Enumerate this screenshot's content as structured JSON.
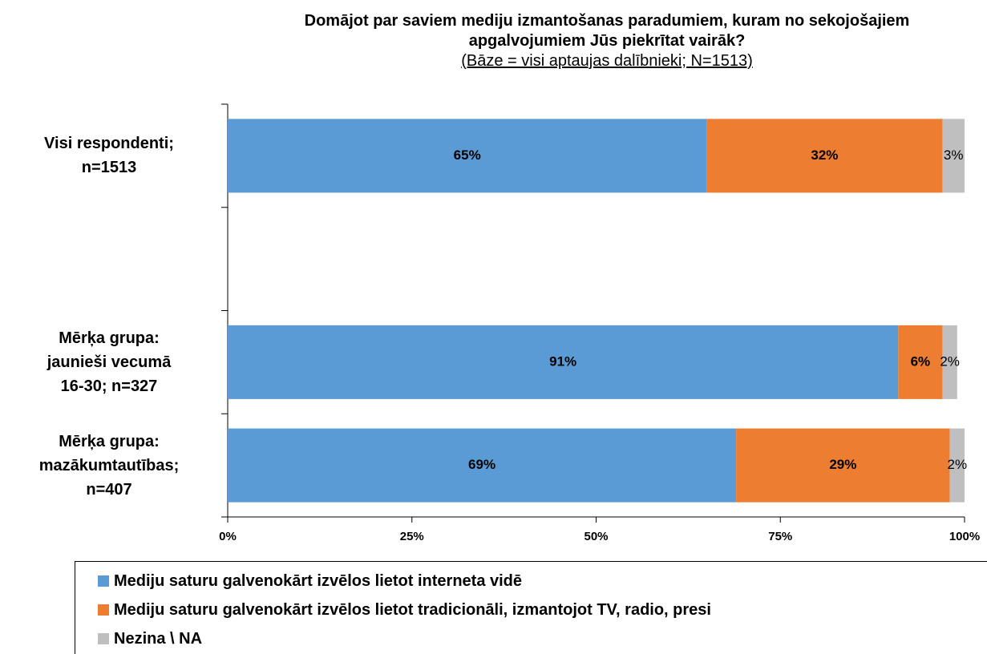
{
  "chart_data": {
    "type": "stacked-bar-horizontal",
    "title": "Domājot par saviem mediju izmantošanas paradumiem, kuram no sekojošajiem apgalvojumiem Jūs piekrītat vairāk?",
    "subtitle": "(Bāze = visi aptaujas dalībnieki; N=1513)",
    "categories": [
      "Visi respondenti;\nn=1513",
      null,
      "Mērķa grupa:\njaunieši vecumā\n16-30; n=327",
      "Mērķa grupa:\nmazākumtautības;\nn=407"
    ],
    "series": [
      {
        "name": "Mediju saturu galvenokārt izvēlos lietot interneta vidē",
        "color": "#5b9bd5",
        "values": [
          65,
          null,
          91,
          69
        ],
        "value_labels": [
          "65%",
          null,
          "91%",
          "69%"
        ]
      },
      {
        "name": "Mediju saturu galvenokārt izvēlos lietot tradicionāli, izmantojot TV, radio, presi",
        "color": "#ed7d31",
        "values": [
          32,
          null,
          6,
          29
        ],
        "value_labels": [
          "32%",
          null,
          "6%",
          "29%"
        ]
      },
      {
        "name": "Nezina \\ NA",
        "color": "#bfbfbf",
        "values": [
          3,
          null,
          2,
          2
        ],
        "value_labels": [
          "3%",
          null,
          "2%",
          "2%"
        ]
      }
    ],
    "xlim": [
      0,
      100
    ],
    "xticks": [
      {
        "value": 0,
        "label": "0%"
      },
      {
        "value": 25,
        "label": "25%"
      },
      {
        "value": 50,
        "label": "50%"
      },
      {
        "value": 75,
        "label": "75%"
      },
      {
        "value": 100,
        "label": "100%"
      }
    ],
    "grid": false,
    "legend": "bottom"
  }
}
